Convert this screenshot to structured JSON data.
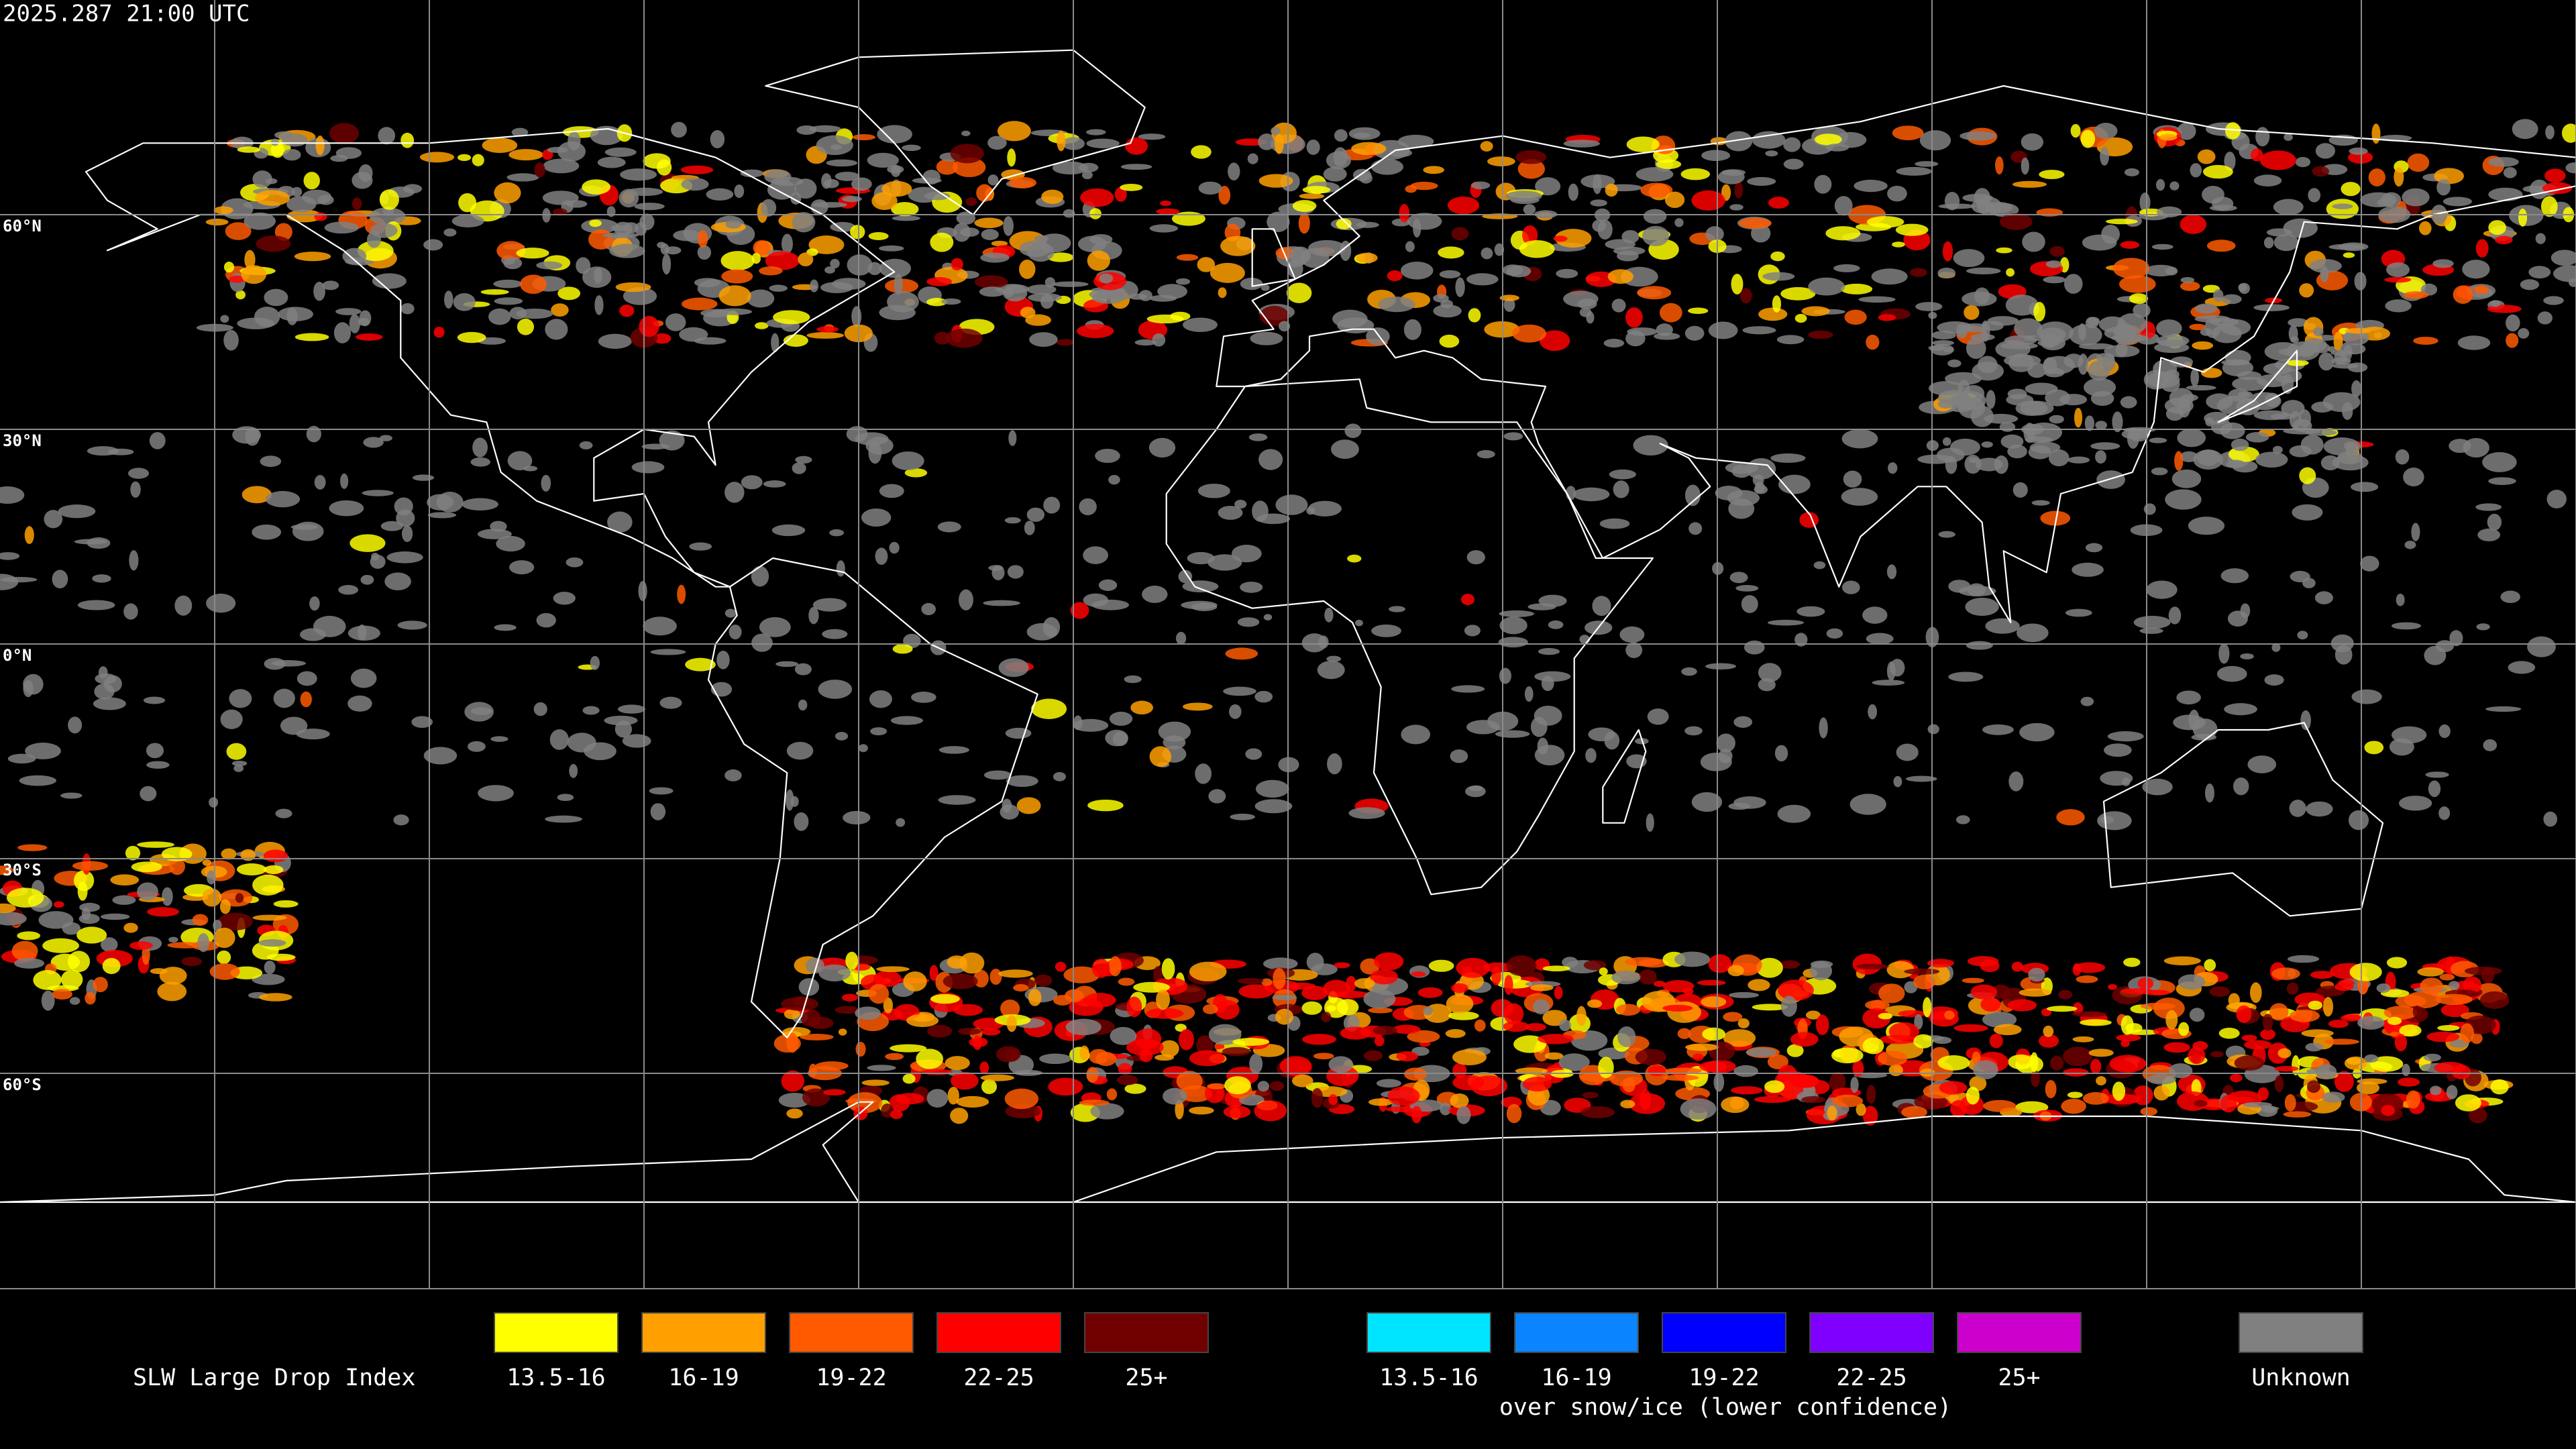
{
  "header": {
    "timestamp": "2025.287 21:00 UTC"
  },
  "map": {
    "latitude_labels": [
      "60°N",
      "30°N",
      "0°N",
      "30°S",
      "60°S"
    ]
  },
  "legend": {
    "title": "SLW Large Drop Index",
    "items": [
      {
        "label": "13.5-16",
        "color": "#ffff00"
      },
      {
        "label": "16-19",
        "color": "#ffa000"
      },
      {
        "label": "19-22",
        "color": "#ff5a00"
      },
      {
        "label": "22-25",
        "color": "#ff0000"
      },
      {
        "label": "25+",
        "color": "#700000"
      }
    ],
    "snow_items": [
      {
        "label": "13.5-16",
        "color": "#00e5ff"
      },
      {
        "label": "16-19",
        "color": "#0a84ff"
      },
      {
        "label": "19-22",
        "color": "#0000ff"
      },
      {
        "label": "22-25",
        "color": "#7f00ff"
      },
      {
        "label": "25+",
        "color": "#cc00cc"
      }
    ],
    "snow_caption": "over snow/ice (lower confidence)",
    "unknown": {
      "label": "Unknown",
      "color": "#808080"
    }
  }
}
